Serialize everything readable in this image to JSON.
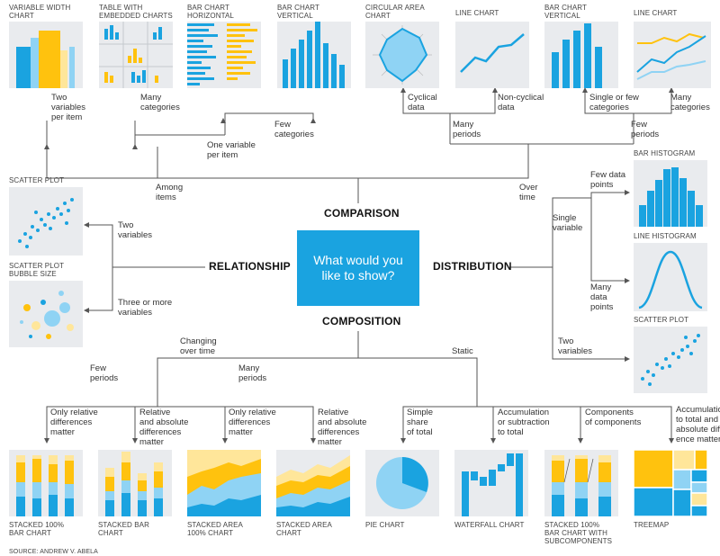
{
  "colors": {
    "blue": "#1aa3e0",
    "yellow": "#ffc20e",
    "light_blue": "#8fd3f4",
    "pale_yellow": "#ffe69a",
    "tile_bg": "#e9ebee"
  },
  "center": {
    "line1": "What would you",
    "line2": "like to show?"
  },
  "categories": {
    "comparison": "COMPARISON",
    "relationship": "RELATIONSHIP",
    "distribution": "DISTRIBUTION",
    "composition": "COMPOSITION"
  },
  "charts": {
    "variable_width": {
      "line1": "VARIABLE WIDTH",
      "line2": "CHART"
    },
    "table_embedded": {
      "line1": "TABLE WITH",
      "line2": "EMBEDDED CHARTS"
    },
    "bar_horizontal": {
      "line1": "BAR CHART",
      "line2": "HORIZONTAL"
    },
    "bar_vertical_1": {
      "line1": "BAR CHART",
      "line2": "VERTICAL"
    },
    "circular_area": {
      "line1": "CIRCULAR AREA",
      "line2": "CHART"
    },
    "line_chart_1": {
      "line1": "LINE CHART"
    },
    "bar_vertical_2": {
      "line1": "BAR CHART",
      "line2": "VERTICAL"
    },
    "line_chart_2": {
      "line1": "LINE CHART"
    },
    "scatter_plot_1": {
      "line1": "SCATTER PLOT"
    },
    "scatter_bubble": {
      "line1": "SCATTER PLOT",
      "line2": "BUBBLE SIZE"
    },
    "bar_histogram": {
      "line1": "BAR HISTOGRAM"
    },
    "line_histogram": {
      "line1": "LINE HISTOGRAM"
    },
    "scatter_plot_2": {
      "line1": "SCATTER PLOT"
    },
    "stacked_100_bar": {
      "line1": "STACKED 100%",
      "line2": "BAR CHART"
    },
    "stacked_bar": {
      "line1": "STACKED BAR",
      "line2": "CHART"
    },
    "stacked_area_100": {
      "line1": "STACKED AREA",
      "line2": "100% CHART"
    },
    "stacked_area": {
      "line1": "STACKED AREA",
      "line2": "CHART"
    },
    "pie": {
      "line1": "PIE CHART"
    },
    "waterfall": {
      "line1": "WATERFALL CHART"
    },
    "stacked_100_sub": {
      "line1": "STACKED 100%",
      "line2": "BAR CHART WITH",
      "line3": "SUBCOMPONENTS"
    },
    "treemap": {
      "line1": "TREEMAP"
    }
  },
  "labels": {
    "two_vars_per_item": {
      "line1": "Two",
      "line2": "variables",
      "line3": "per item"
    },
    "many_categories_1": {
      "line1": "Many",
      "line2": "categories"
    },
    "few_categories": {
      "line1": "Few",
      "line2": "categories"
    },
    "one_var_per_item": {
      "line1": "One variable",
      "line2": "per item"
    },
    "among_items": {
      "line1": "Among",
      "line2": "items"
    },
    "cyclical": {
      "line1": "Cyclical",
      "line2": "data"
    },
    "non_cyclical": {
      "line1": "Non-cyclical",
      "line2": "data"
    },
    "single_few_cat": {
      "line1": "Single or few",
      "line2": "categories"
    },
    "many_categories_2": {
      "line1": "Many",
      "line2": "categories"
    },
    "many_periods_1": {
      "line1": "Many",
      "line2": "periods"
    },
    "few_periods_1": {
      "line1": "Few",
      "line2": "periods"
    },
    "over_time": {
      "line1": "Over",
      "line2": "time"
    },
    "two_variables_rel": {
      "line1": "Two",
      "line2": "variables"
    },
    "three_more": {
      "line1": "Three or more",
      "line2": "variables"
    },
    "few_data_points": {
      "line1": "Few data",
      "line2": "points"
    },
    "single_variable": {
      "line1": "Single",
      "line2": "variable"
    },
    "many_data_points": {
      "line1": "Many",
      "line2": "data",
      "line3": "points"
    },
    "two_variables_dist": {
      "line1": "Two",
      "line2": "variables"
    },
    "changing_over_time": {
      "line1": "Changing",
      "line2": "over time"
    },
    "static": {
      "line1": "Static"
    },
    "few_periods_2": {
      "line1": "Few",
      "line2": "periods"
    },
    "many_periods_2": {
      "line1": "Many",
      "line2": "periods"
    },
    "only_rel_1": {
      "line1": "Only relative",
      "line2": "differences",
      "line3": "matter"
    },
    "rel_abs_1": {
      "line1": "Relative",
      "line2": "and absolute",
      "line3": "differences",
      "line4": "matter"
    },
    "only_rel_2": {
      "line1": "Only relative",
      "line2": "differences",
      "line3": "matter"
    },
    "rel_abs_2": {
      "line1": "Relative",
      "line2": "and absolute",
      "line3": "differences",
      "line4": "matter"
    },
    "simple_share": {
      "line1": "Simple",
      "line2": "share",
      "line3": "of total"
    },
    "accum_sub": {
      "line1": "Accumulation",
      "line2": "or subtraction",
      "line3": "to total"
    },
    "comp_of_comp": {
      "line1": "Components",
      "line2": "of components"
    },
    "accum_total_abs": {
      "line1": "Accumulation",
      "line2": "to total and",
      "line3": "absolute differ-",
      "line4": "ence matters"
    }
  },
  "source": "SOURCE: ANDREW V. ABELA"
}
